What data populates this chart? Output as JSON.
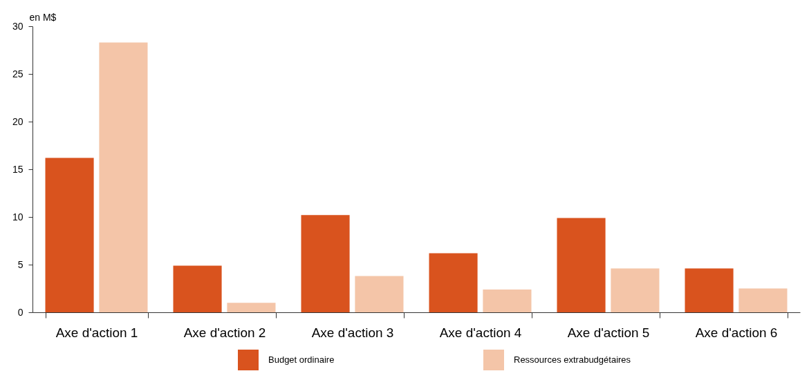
{
  "chart_data": {
    "type": "bar",
    "ylabel": "en M$",
    "categories": [
      "Axe d'action 1",
      "Axe d'action 2",
      "Axe d'action 3",
      "Axe d'action 4",
      "Axe d'action 5",
      "Axe d'action 6"
    ],
    "series": [
      {
        "name": "Budget ordinaire",
        "color": "#d9531e",
        "values": [
          16.2,
          4.9,
          10.2,
          6.2,
          9.9,
          4.6
        ]
      },
      {
        "name": "Ressources extrabudgétaires",
        "color": "#f4c5a8",
        "values": [
          28.3,
          1.0,
          3.8,
          2.4,
          4.6,
          2.5
        ]
      }
    ],
    "ylim": [
      0,
      30
    ],
    "yticks": [
      0,
      5,
      10,
      15,
      20,
      25,
      30
    ],
    "grid": false,
    "legend": "bottom"
  }
}
